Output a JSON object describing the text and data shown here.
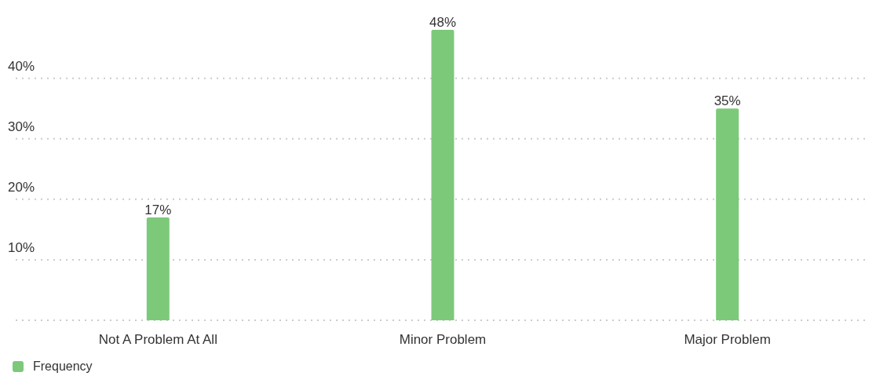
{
  "chart_data": {
    "type": "bar",
    "categories": [
      "Not A Problem At All",
      "Minor Problem",
      "Major Problem"
    ],
    "series": [
      {
        "name": "Frequency",
        "color": "#7dc97a",
        "values": [
          17,
          48,
          35
        ],
        "value_labels": [
          "17%",
          "48%",
          "35%"
        ]
      }
    ],
    "ylim": [
      0,
      48
    ],
    "yticks": [
      {
        "value": 0,
        "label": null
      },
      {
        "value": 10,
        "label": "10%"
      },
      {
        "value": 20,
        "label": "20%"
      },
      {
        "value": 30,
        "label": "30%"
      },
      {
        "value": 40,
        "label": "40%"
      }
    ],
    "grid": "y",
    "legend": "bottom left"
  }
}
